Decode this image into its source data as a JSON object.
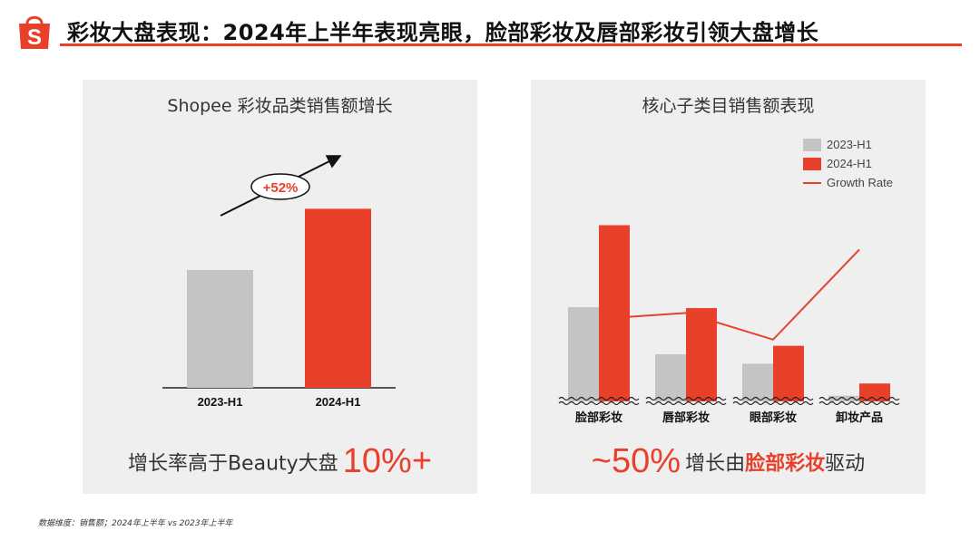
{
  "header": {
    "title": "彩妆大盘表现：2024年上半年表现亮眼，脸部彩妆及唇部彩妆引领大盘增长",
    "logo_letter": "S"
  },
  "colors": {
    "accent": "#e8402b",
    "grey_bar": "#c4c4c4",
    "panel_bg": "#efefef"
  },
  "left_panel": {
    "title": "Shopee 彩妆品类销售额增长",
    "growth_badge": "+52%",
    "footer_prefix": "增长率高于Beauty大盘",
    "footer_value": "10%+"
  },
  "right_panel": {
    "title": "核心子类目销售额表现",
    "footer_value": "~50%",
    "footer_text_1": "增长由",
    "footer_accent": "脸部彩妆",
    "footer_text_2": "驱动"
  },
  "source_note": "数据维度：销售额；2024年上半年 vs 2023年上半年",
  "chart_data": [
    {
      "type": "bar",
      "title": "Shopee 彩妆品类销售额增长",
      "categories": [
        "2023-H1",
        "2024-H1"
      ],
      "values": [
        100,
        152
      ],
      "ylim": [
        0,
        200
      ],
      "xlabel": "",
      "ylabel": "",
      "annotations": [
        "+52%"
      ]
    },
    {
      "type": "bar",
      "title": "核心子类目销售额表现",
      "categories": [
        "脸部彩妆",
        "唇部彩妆",
        "眼部彩妆",
        "卸妆产品"
      ],
      "series": [
        {
          "name": "2023-H1",
          "values": [
            100,
            50,
            40,
            6
          ]
        },
        {
          "name": "2024-H1",
          "values": [
            187,
            99,
            59,
            19
          ]
        }
      ],
      "line_series": {
        "name": "Growth Rate",
        "values": [
          87,
          98,
          48,
          217
        ]
      },
      "ylim": [
        0,
        200
      ],
      "legend": "top-right",
      "xlabel": "",
      "ylabel": ""
    }
  ]
}
